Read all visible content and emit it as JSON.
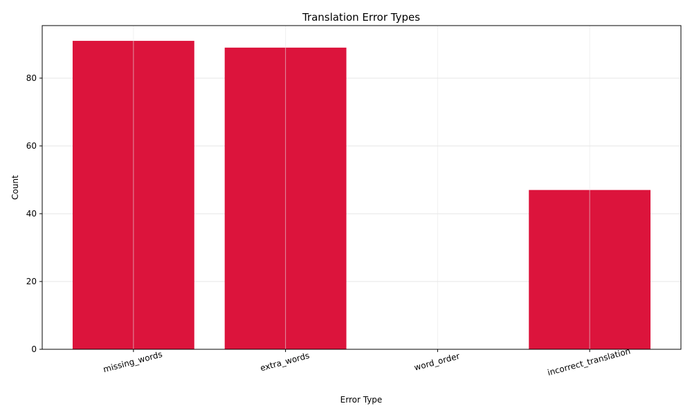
{
  "chart_data": {
    "type": "bar",
    "title": "Translation Error Types",
    "xlabel": "Error Type",
    "ylabel": "Count",
    "categories": [
      "missing_words",
      "extra_words",
      "word_order",
      "incorrect_translation"
    ],
    "values": [
      91,
      89,
      0,
      47
    ],
    "ylim": [
      0,
      95.5
    ],
    "yticks": [
      0,
      20,
      40,
      60,
      80
    ],
    "bar_color": "#dc143c",
    "grid": true,
    "xtick_rotation": -15
  }
}
